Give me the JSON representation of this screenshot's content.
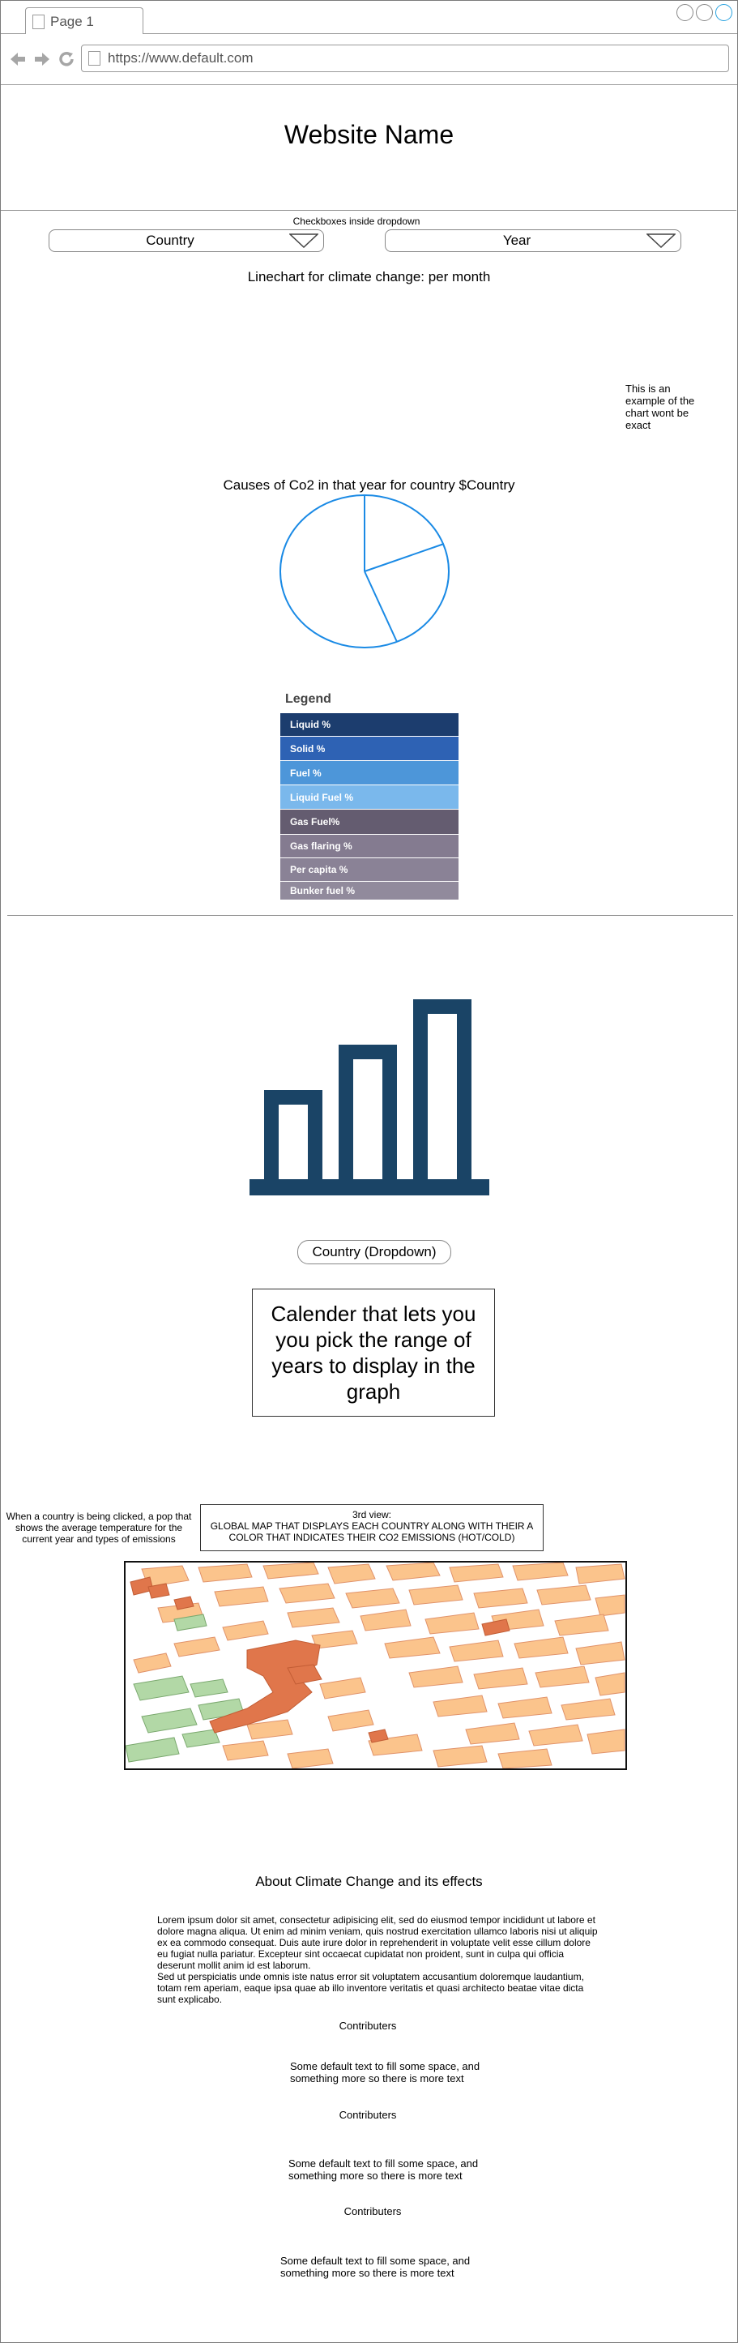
{
  "browser": {
    "tab_label": "Page 1",
    "url": "https://www.default.com"
  },
  "header": {
    "site_name": "Website Name"
  },
  "filters": {
    "caption": "Checkboxes inside dropdown",
    "country_label": "Country",
    "year_label": "Year"
  },
  "linechart": {
    "title": "Linechart for climate change: per month",
    "note": "This is an example of the chart wont be exact"
  },
  "piechart": {
    "title": "Causes of Co2 in that year for country $Country"
  },
  "legend": {
    "title": "Legend",
    "items": [
      {
        "label": "Liquid %",
        "color": "#1c3d6e"
      },
      {
        "label": "Solid %",
        "color": "#2e62b4"
      },
      {
        "label": "Fuel %",
        "color": "#4d96d9"
      },
      {
        "label": "Liquid Fuel %",
        "color": "#7ab8ec"
      },
      {
        "label": "Gas Fuel%",
        "color": "#645c70"
      },
      {
        "label": "Gas flaring %",
        "color": "#847b90"
      },
      {
        "label": "Per capita %",
        "color": "#8a8296"
      },
      {
        "label": "Bunker fuel %",
        "color": "#918a9c"
      }
    ]
  },
  "barview": {
    "icon": "bar-chart-icon",
    "country_dropdown_label": "Country (Dropdown)",
    "calendar_text": "Calender that lets you you pick the range of years to display in the graph"
  },
  "mapview": {
    "note": "When a country is being clicked, a pop that shows the average temperature for the current year and types of emissions",
    "box_title": "3rd view:",
    "box_text": "GLOBAL MAP THAT DISPLAYS EACH COUNTRY ALONG WITH THEIR A COLOR THAT INDICATES THEIR CO2 EMISSIONS  (HOT/COLD)",
    "map_icon": "map-image"
  },
  "about": {
    "title": "About Climate Change and its effects",
    "text": "Lorem ipsum dolor sit amet, consectetur adipisicing elit, sed do eiusmod tempor incididunt ut labore et dolore magna aliqua. Ut enim ad minim veniam, quis nostrud exercitation ullamco laboris nisi ut aliquip ex ea commodo consequat. Duis aute irure dolor in reprehenderit in voluptate velit esse cillum dolore eu fugiat nulla pariatur. Excepteur sint occaecat cupidatat non proident, sunt in culpa qui officia deserunt mollit anim id est laborum.\nSed ut perspiciatis unde omnis iste natus error sit voluptatem accusantium doloremque laudantium, totam rem aperiam, eaque ipsa quae ab illo inventore veritatis et quasi architecto beatae vitae dicta sunt explicabo."
  },
  "contributors": [
    {
      "title": "Contributers",
      "text": "Some default text to fill some space, and something more so there is more text"
    },
    {
      "title": "Contributers",
      "text": "Some default text to fill some space, and something more so there is more text"
    },
    {
      "title": "Contributers",
      "text": "Some default text to fill some space, and something more so there is more text"
    }
  ]
}
